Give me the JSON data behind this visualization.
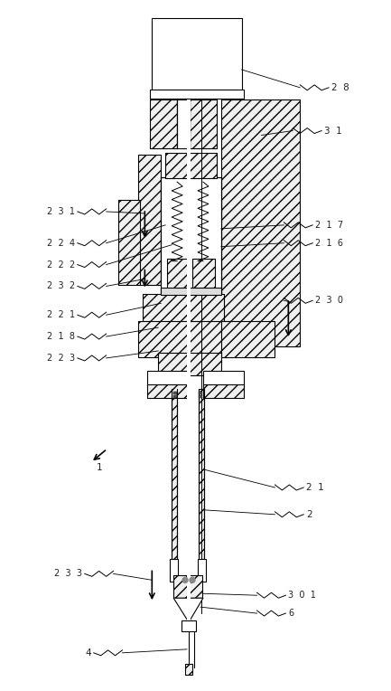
{
  "bg_color": "#ffffff",
  "lc": "#000000",
  "fig_w": 4.33,
  "fig_h": 7.64,
  "dpi": 100
}
